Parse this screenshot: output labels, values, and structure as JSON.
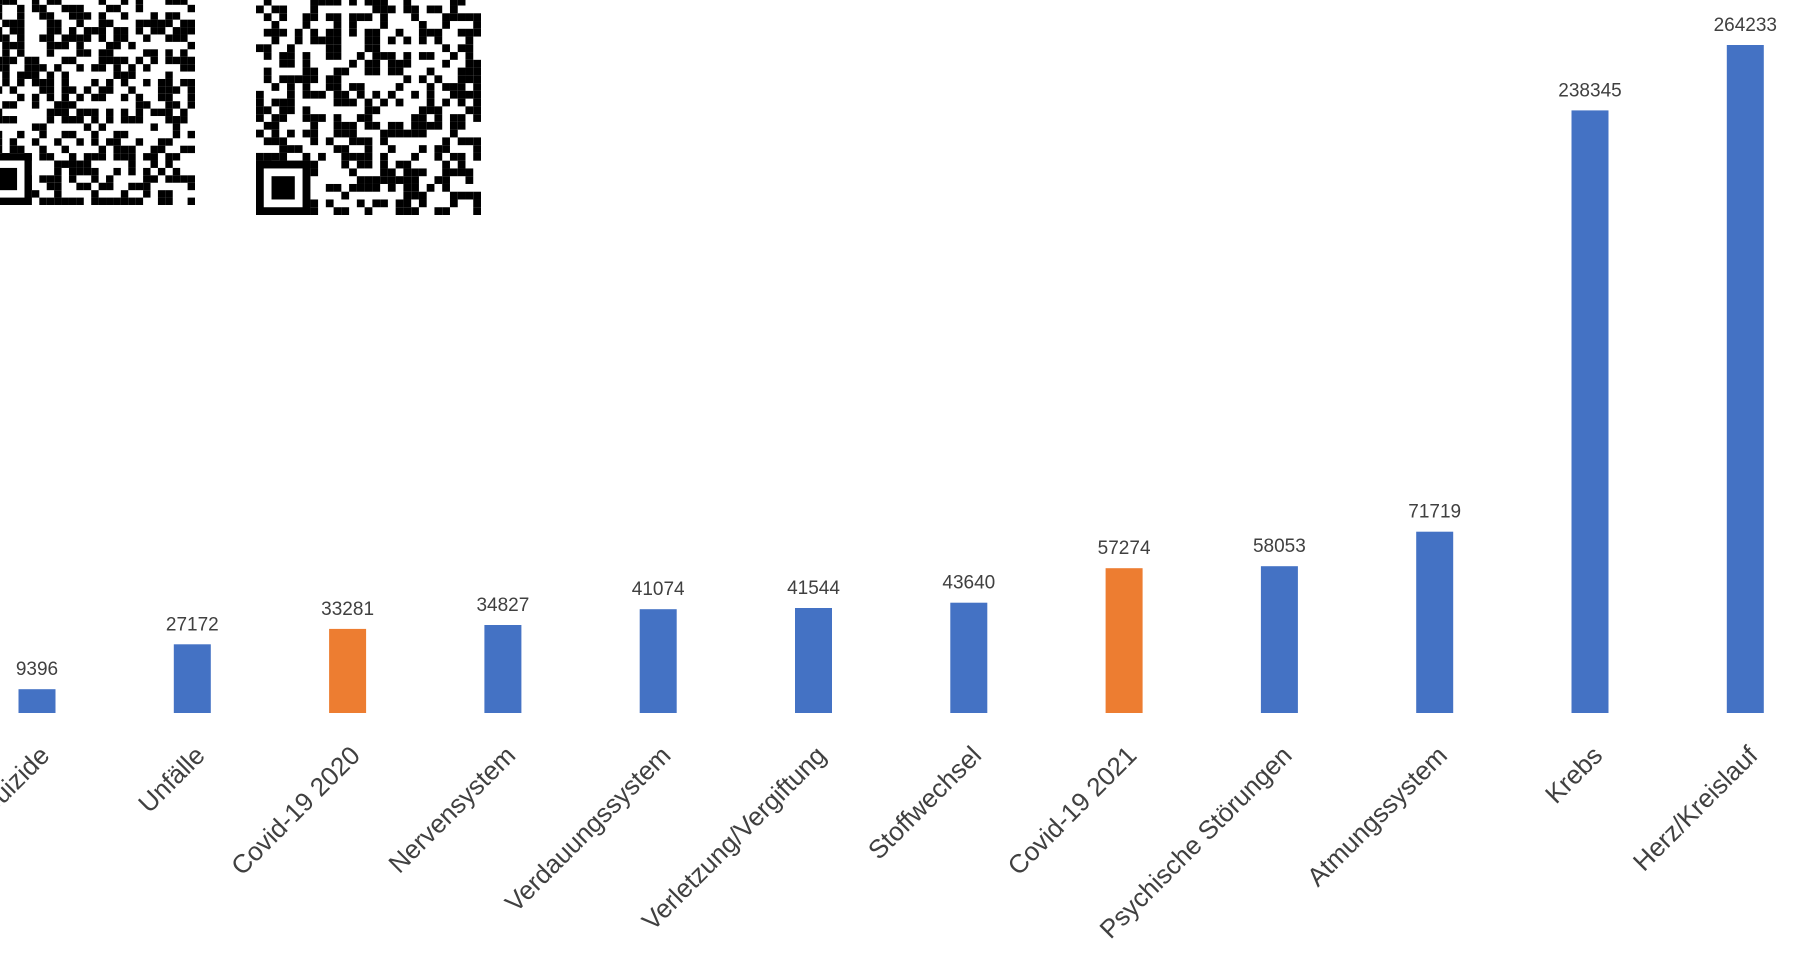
{
  "chart_data": {
    "type": "bar",
    "title": "",
    "xlabel": "",
    "ylabel": "",
    "categories": [
      "Suizide",
      "Unfälle",
      "Covid-19 2020",
      "Nervensystem",
      "Verdauungssystem",
      "Verletzung/Vergiftung",
      "Stoffwechsel",
      "Covid-19 2021",
      "Psychische Störungen",
      "Atmungssystem",
      "Krebs",
      "Herz/Kreislauf"
    ],
    "values": [
      9396,
      27172,
      33281,
      34827,
      41074,
      41544,
      43640,
      57274,
      58053,
      71719,
      238345,
      264233
    ],
    "highlight": [
      false,
      false,
      true,
      false,
      false,
      false,
      false,
      true,
      false,
      false,
      false,
      false
    ],
    "ylim": [
      0,
      264233
    ],
    "grid": false,
    "legend": "none",
    "colors": {
      "default_bar": "#4472C4",
      "highlight_bar": "#ED7D31",
      "label_text": "#404040"
    }
  },
  "decorations": {
    "qr_codes": [
      "qr-code-icon",
      "qr-code-icon"
    ]
  }
}
